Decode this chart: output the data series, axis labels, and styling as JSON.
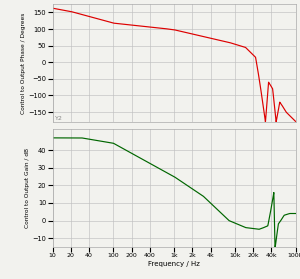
{
  "freq_min": 10,
  "freq_max": 100000,
  "phase_ylim": [
    -180,
    175
  ],
  "phase_yticks": [
    150,
    100,
    50,
    0,
    -50,
    -100,
    -150
  ],
  "phase_ylabel": "Control to Output Phase / Degrees",
  "gain_ylim": [
    -15,
    52
  ],
  "gain_yticks": [
    -10,
    0,
    10,
    20,
    30,
    40
  ],
  "gain_ylabel": "Control to Output Gain / dB",
  "xlabel": "Frequency / Hz",
  "phase_color": "#dd0000",
  "gain_color": "#006600",
  "background_color": "#f2f2ee",
  "grid_color": "#c0c0c0",
  "xtick_labels": [
    "10",
    "20",
    "40",
    "100",
    "200",
    "400",
    "1k",
    "2k",
    "4k",
    "10k",
    "20k",
    "40k",
    "100k"
  ],
  "xtick_values": [
    10,
    20,
    40,
    100,
    200,
    400,
    1000,
    2000,
    4000,
    10000,
    20000,
    40000,
    100000
  ]
}
